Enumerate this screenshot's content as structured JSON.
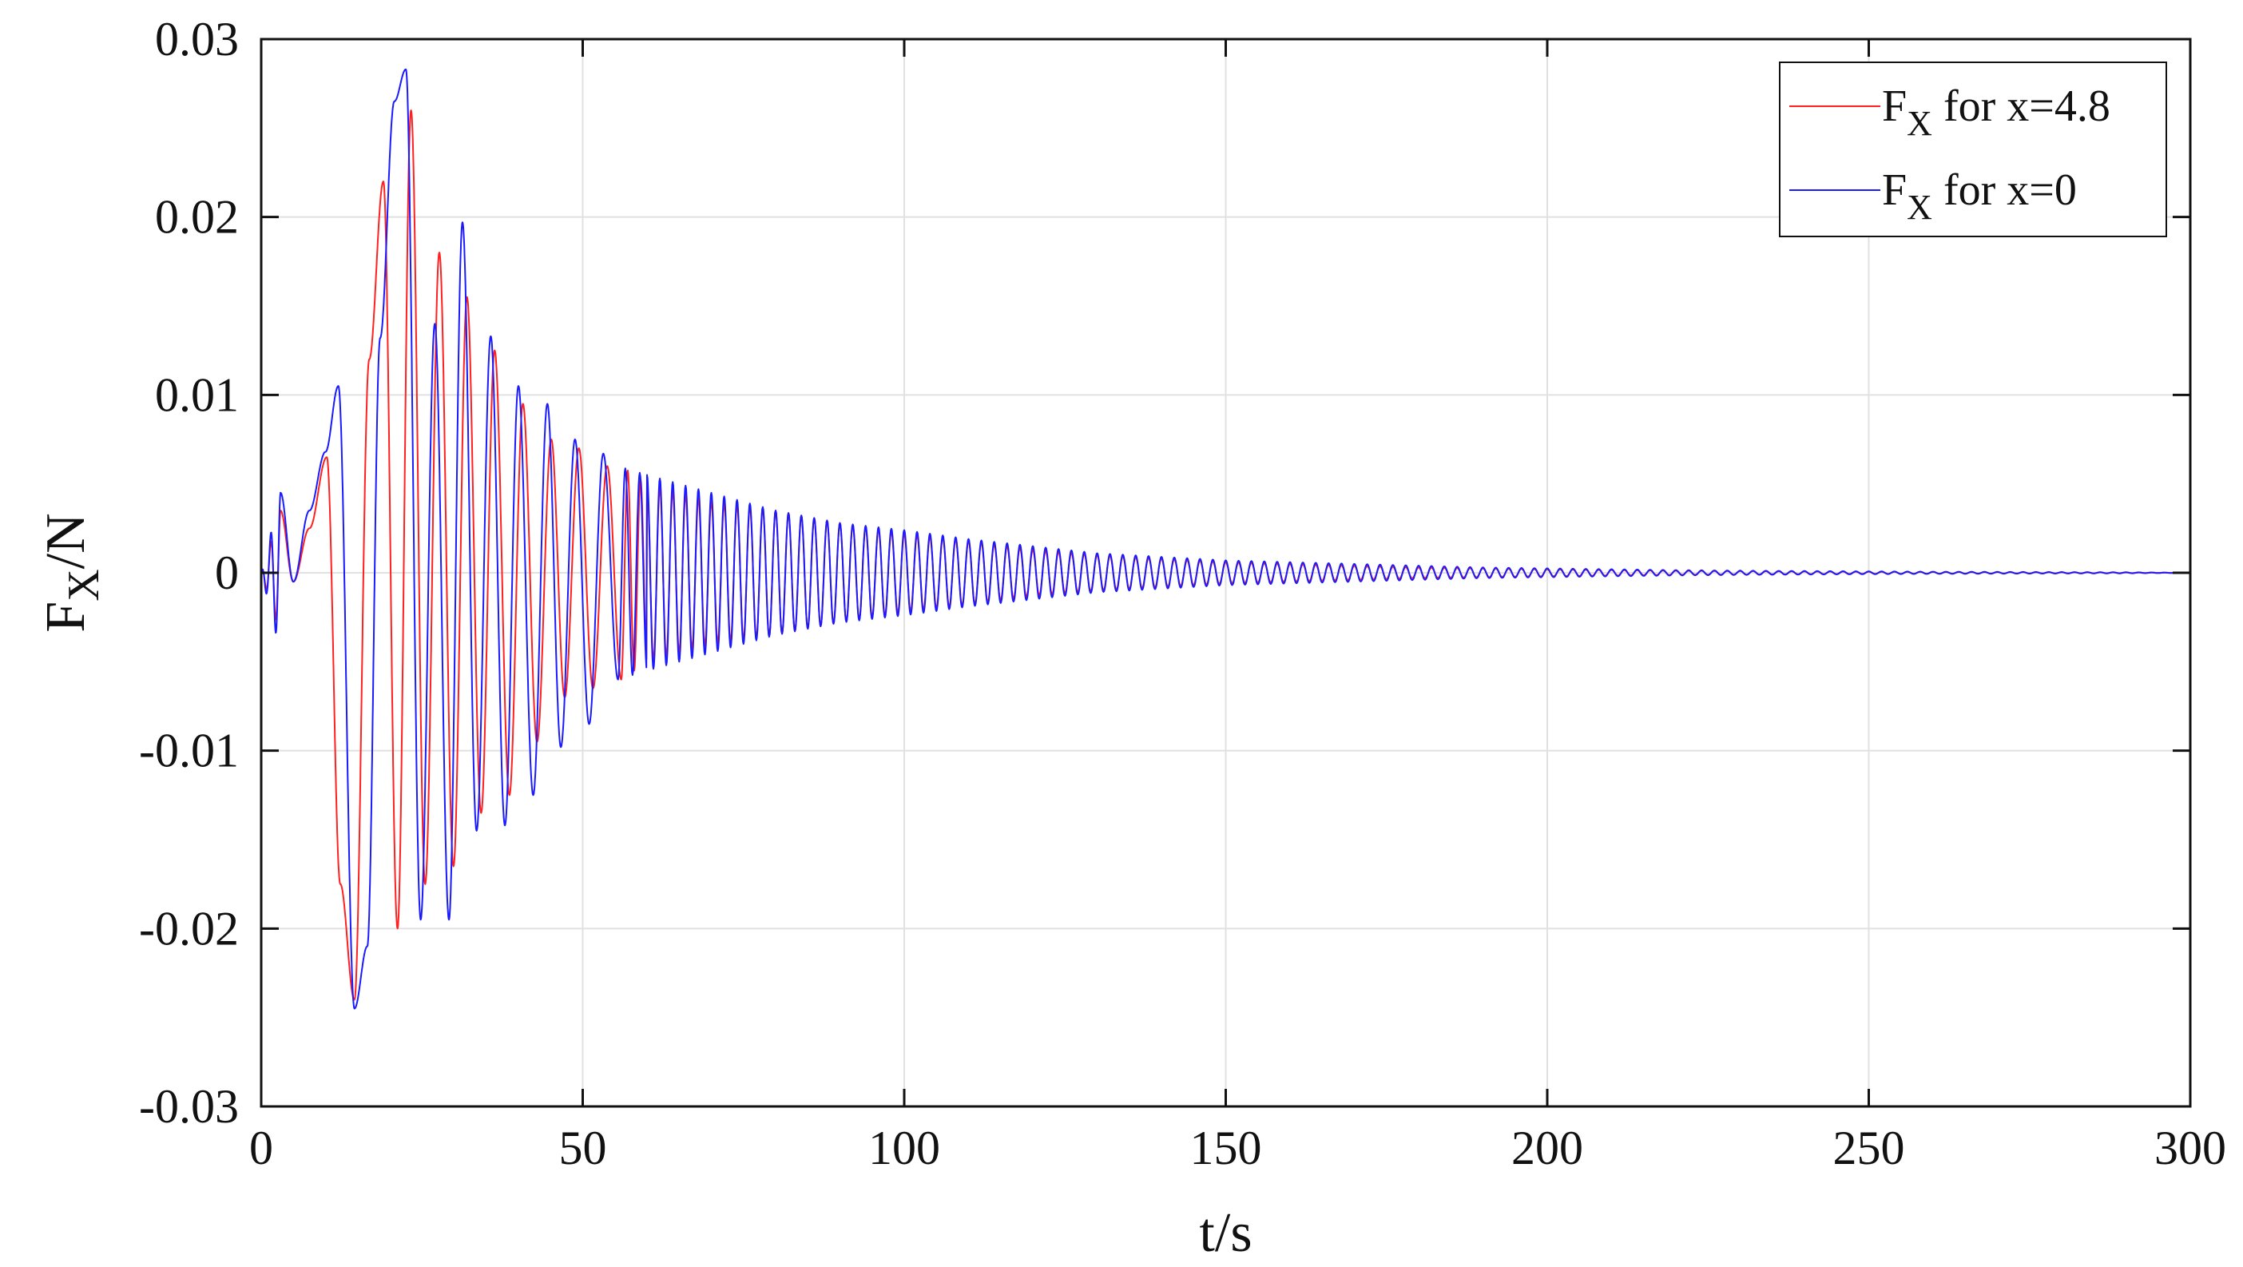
{
  "colors": {
    "series_a": "#ff2020",
    "series_b": "#1a1aff",
    "grid": "#e1e1e1",
    "axes": "#111111"
  },
  "chart_data": {
    "type": "line",
    "title": "",
    "xlabel": "t/s",
    "ylabel": {
      "main": "F",
      "sub": "X",
      "suffix": "/N"
    },
    "xlim": [
      0,
      300
    ],
    "ylim": [
      -0.03,
      0.03
    ],
    "xticks": [
      0,
      50,
      100,
      150,
      200,
      250,
      300
    ],
    "yticks": [
      -0.03,
      -0.02,
      -0.01,
      0,
      0.01,
      0.02,
      0.03
    ],
    "xtick_labels": [
      "0",
      "50",
      "100",
      "150",
      "200",
      "250",
      "300"
    ],
    "ytick_labels": [
      "-0.03",
      "-0.02",
      "-0.01",
      "0",
      "0.01",
      "0.02",
      "0.03"
    ],
    "grid": true,
    "legend_position": "top-right",
    "series": [
      {
        "legend": {
          "main": "F",
          "sub": "X",
          "rest": " for x=4.8"
        },
        "color": "#ff2020",
        "x": [
          0,
          3,
          5,
          7.5,
          10.2,
          12.3,
          14.5,
          16.8,
          19,
          21.2,
          23.3,
          25.5,
          27.7,
          29.9,
          32,
          34.2,
          36.3,
          38.6,
          40.7,
          42.9,
          45.1,
          47.2,
          49.4,
          51.6,
          53.8,
          56,
          60,
          70,
          80,
          90,
          100,
          110,
          120,
          130,
          140,
          150,
          160,
          170,
          180,
          190,
          200,
          210,
          220,
          230,
          240,
          250,
          260,
          270,
          280,
          290,
          300
        ],
        "y": [
          0,
          0.0035,
          -0.0005,
          0.0025,
          0.0065,
          -0.0175,
          -0.024,
          0.012,
          0.022,
          -0.02,
          0.026,
          -0.0175,
          0.018,
          -0.0165,
          0.0155,
          -0.0135,
          0.0125,
          -0.0125,
          0.0095,
          -0.0095,
          0.0075,
          -0.007,
          0.007,
          -0.0065,
          0.006,
          -0.006,
          0.005,
          0.004,
          0.0035,
          0.0028,
          0.0022,
          0.0018,
          0.0013,
          0.001,
          0.0008,
          0.0006,
          0.0005,
          0.0004,
          0.0003,
          0.00025,
          0.0002,
          0.00016,
          0.00012,
          0.0001,
          8e-05,
          6e-05,
          5e-05,
          4e-05,
          3e-05,
          2e-05,
          0
        ]
      },
      {
        "legend": {
          "main": "F",
          "sub": "X",
          "rest": " for x=0"
        },
        "color": "#1a1aff",
        "x": [
          0,
          3,
          5,
          7.5,
          10,
          12,
          14.5,
          16.5,
          18.5,
          20.7,
          22.5,
          24.8,
          27,
          29.2,
          31.3,
          33.5,
          35.7,
          37.9,
          40,
          42.3,
          44.5,
          46.6,
          48.8,
          51,
          53.2,
          55.5,
          60,
          70,
          80,
          90,
          100,
          110,
          120,
          130,
          140,
          150,
          160,
          170,
          180,
          190,
          200,
          210,
          220,
          230,
          240,
          250,
          260,
          270,
          280,
          290,
          300
        ],
        "y": [
          0,
          0.0045,
          -0.0005,
          0.0035,
          0.0068,
          0.0105,
          -0.0245,
          -0.021,
          0.0132,
          0.0265,
          0.0283,
          -0.0195,
          0.014,
          -0.0195,
          0.0197,
          -0.0145,
          0.0133,
          -0.0142,
          0.0105,
          -0.0125,
          0.0095,
          -0.0098,
          0.0075,
          -0.0085,
          0.0067,
          -0.006,
          0.0055,
          0.0045,
          0.0035,
          0.0028,
          0.0024,
          0.0019,
          0.0015,
          0.0011,
          0.0009,
          0.0007,
          0.0006,
          0.0005,
          0.0004,
          0.0003,
          0.00025,
          0.0002,
          0.00015,
          0.00012,
          0.0001,
          8e-05,
          6e-05,
          5e-05,
          4e-05,
          3e-05,
          0
        ]
      }
    ]
  }
}
